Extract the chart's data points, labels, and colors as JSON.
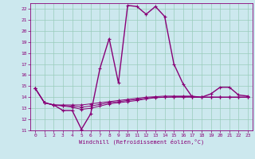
{
  "xlabel": "Windchill (Refroidissement éolien,°C)",
  "bg_color": "#cce8ee",
  "grid_color": "#99ccbb",
  "line_color": "#880077",
  "xlim": [
    -0.5,
    23.5
  ],
  "ylim": [
    11,
    22.5
  ],
  "yticks": [
    11,
    12,
    13,
    14,
    15,
    16,
    17,
    18,
    19,
    20,
    21,
    22
  ],
  "xticks": [
    0,
    1,
    2,
    3,
    4,
    5,
    6,
    7,
    8,
    9,
    10,
    11,
    12,
    13,
    14,
    15,
    16,
    17,
    18,
    19,
    20,
    21,
    22,
    23
  ],
  "series": [
    [
      14.8,
      13.5,
      13.3,
      12.8,
      12.8,
      11.1,
      12.5,
      16.6,
      19.3,
      15.3,
      22.3,
      22.2,
      21.5,
      22.2,
      21.3,
      17.0,
      15.2,
      14.0,
      14.0,
      14.3,
      14.9,
      14.9,
      14.2,
      14.1
    ],
    [
      14.8,
      13.5,
      13.3,
      13.3,
      13.3,
      13.3,
      13.4,
      13.5,
      13.6,
      13.7,
      13.8,
      13.9,
      14.0,
      14.05,
      14.1,
      14.1,
      14.1,
      14.1,
      14.0,
      14.0,
      14.0,
      14.0,
      14.0,
      14.0
    ],
    [
      14.8,
      13.5,
      13.3,
      13.25,
      13.2,
      13.1,
      13.2,
      13.35,
      13.5,
      13.6,
      13.7,
      13.8,
      13.9,
      14.0,
      14.0,
      14.05,
      14.05,
      14.05,
      14.0,
      14.0,
      14.0,
      14.0,
      14.0,
      14.0
    ],
    [
      14.8,
      13.5,
      13.3,
      13.2,
      13.1,
      12.9,
      13.0,
      13.2,
      13.4,
      13.5,
      13.6,
      13.7,
      13.85,
      13.95,
      14.0,
      14.0,
      14.0,
      14.0,
      14.0,
      14.0,
      14.0,
      14.0,
      14.0,
      14.0
    ]
  ]
}
